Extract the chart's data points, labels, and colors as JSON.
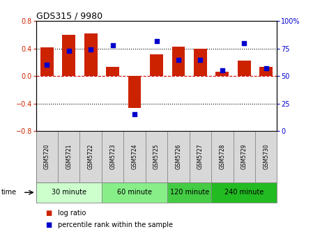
{
  "title": "GDS315 / 9980",
  "samples": [
    "GSM5720",
    "GSM5721",
    "GSM5722",
    "GSM5723",
    "GSM5724",
    "GSM5725",
    "GSM5726",
    "GSM5727",
    "GSM5728",
    "GSM5729",
    "GSM5730"
  ],
  "log_ratios": [
    0.42,
    0.6,
    0.62,
    0.13,
    -0.46,
    0.32,
    0.43,
    0.4,
    0.06,
    0.22,
    0.13
  ],
  "percentile_ranks": [
    60,
    73,
    74,
    78,
    15,
    82,
    65,
    65,
    55,
    80,
    57
  ],
  "bar_color": "#cc2200",
  "dot_color": "#0000cc",
  "ylim": [
    -0.8,
    0.8
  ],
  "y2lim": [
    0,
    100
  ],
  "yticks": [
    -0.8,
    -0.4,
    0.0,
    0.4,
    0.8
  ],
  "y2ticks": [
    0,
    25,
    50,
    75,
    100
  ],
  "y2ticklabels": [
    "0",
    "25",
    "50",
    "75",
    "100%"
  ],
  "groups": [
    {
      "label": "30 minute",
      "start": 0,
      "end": 2,
      "color": "#ccffcc"
    },
    {
      "label": "60 minute",
      "start": 3,
      "end": 5,
      "color": "#88ee88"
    },
    {
      "label": "120 minute",
      "start": 6,
      "end": 7,
      "color": "#44cc44"
    },
    {
      "label": "240 minute",
      "start": 8,
      "end": 10,
      "color": "#22bb22"
    }
  ],
  "time_label": "time",
  "legend_bar_label": "log ratio",
  "legend_dot_label": "percentile rank within the sample",
  "bg_color": "#ffffff",
  "tick_label_color_left": "#cc2200",
  "tick_label_color_right": "#0000cc"
}
